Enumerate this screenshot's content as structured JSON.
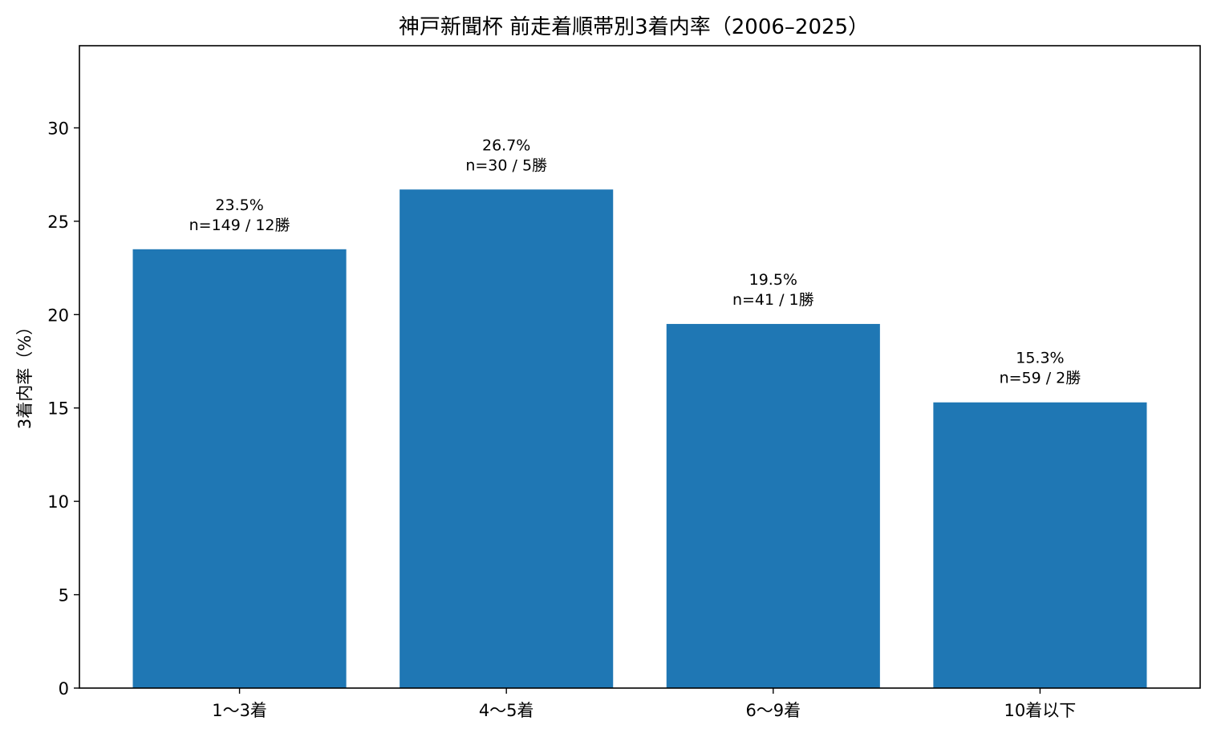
{
  "chart_data": {
    "type": "bar",
    "title": "神戸新聞杯 前走着順帯別3着内率（2006–2025）",
    "xlabel": "",
    "ylabel": "3着内率（%）",
    "ylim": [
      0,
      34.4
    ],
    "yticks": [
      0,
      5,
      10,
      15,
      20,
      25,
      30
    ],
    "categories": [
      "1〜3着",
      "4〜5着",
      "6〜9着",
      "10着以下"
    ],
    "values": [
      23.5,
      26.7,
      19.5,
      15.3
    ],
    "value_labels": [
      "23.5%",
      "26.7%",
      "19.5%",
      "15.3%"
    ],
    "sub_labels": [
      "n=149 / 12勝",
      "n=30 / 5勝",
      "n=41 / 1勝",
      "n=59 / 2勝"
    ],
    "bar_color": "#1f77b4",
    "grid": false,
    "legend": "none"
  }
}
